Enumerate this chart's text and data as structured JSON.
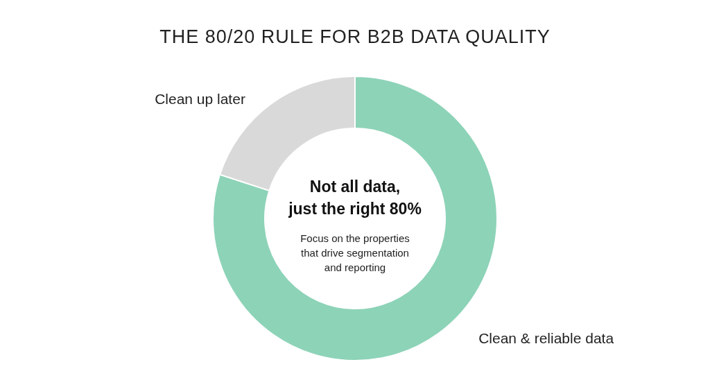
{
  "chart_data": {
    "type": "donut",
    "title": "THE 80/20 RULE FOR B2B DATA QUALITY",
    "categories": [
      "Clean & reliable data",
      "Clean up later"
    ],
    "values": [
      80,
      20
    ],
    "colors": [
      "#8dd3b8",
      "#d9d9d9"
    ],
    "legend": false,
    "annotations": [
      "Not all data,",
      "just the right 80%",
      "Focus on the properties",
      "that drive segmentation",
      "and reporting"
    ]
  }
}
